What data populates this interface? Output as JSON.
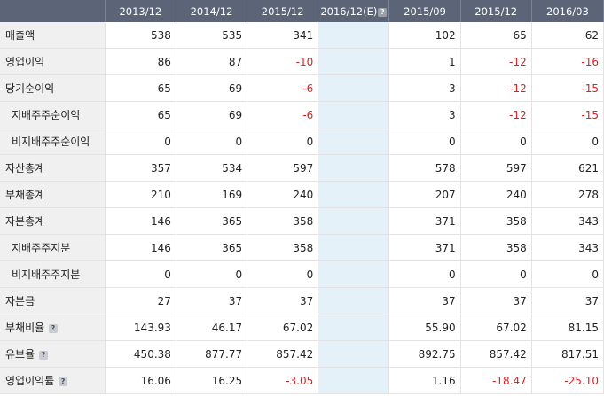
{
  "columns": [
    "2013/12",
    "2014/12",
    "2015/12",
    "2016/12(E)",
    "2015/09",
    "2015/12",
    "2016/03"
  ],
  "help_glyph": "?",
  "rows": [
    {
      "label": "매출액",
      "sub": false,
      "help": false,
      "values": [
        "538",
        "535",
        "341",
        "",
        "102",
        "65",
        "62"
      ]
    },
    {
      "label": "영업이익",
      "sub": false,
      "help": false,
      "values": [
        "86",
        "87",
        "-10",
        "",
        "1",
        "-12",
        "-16"
      ]
    },
    {
      "label": "당기순이익",
      "sub": false,
      "help": false,
      "values": [
        "65",
        "69",
        "-6",
        "",
        "3",
        "-12",
        "-15"
      ]
    },
    {
      "label": "지배주주순이익",
      "sub": true,
      "help": false,
      "values": [
        "65",
        "69",
        "-6",
        "",
        "3",
        "-12",
        "-15"
      ]
    },
    {
      "label": "비지배주주순이익",
      "sub": true,
      "help": false,
      "values": [
        "0",
        "0",
        "0",
        "",
        "0",
        "0",
        "0"
      ]
    },
    {
      "label": "자산총계",
      "sub": false,
      "help": false,
      "values": [
        "357",
        "534",
        "597",
        "",
        "578",
        "597",
        "621"
      ]
    },
    {
      "label": "부채총계",
      "sub": false,
      "help": false,
      "values": [
        "210",
        "169",
        "240",
        "",
        "207",
        "240",
        "278"
      ]
    },
    {
      "label": "자본총계",
      "sub": false,
      "help": false,
      "values": [
        "146",
        "365",
        "358",
        "",
        "371",
        "358",
        "343"
      ]
    },
    {
      "label": "지배주주지분",
      "sub": true,
      "help": false,
      "values": [
        "146",
        "365",
        "358",
        "",
        "371",
        "358",
        "343"
      ]
    },
    {
      "label": "비지배주주지분",
      "sub": true,
      "help": false,
      "values": [
        "0",
        "0",
        "0",
        "",
        "0",
        "0",
        "0"
      ]
    },
    {
      "label": "자본금",
      "sub": false,
      "help": false,
      "values": [
        "27",
        "37",
        "37",
        "",
        "37",
        "37",
        "37"
      ]
    },
    {
      "label": "부채비율",
      "sub": false,
      "help": true,
      "values": [
        "143.93",
        "46.17",
        "67.02",
        "",
        "55.90",
        "67.02",
        "81.15"
      ]
    },
    {
      "label": "유보율",
      "sub": false,
      "help": true,
      "values": [
        "450.38",
        "877.77",
        "857.42",
        "",
        "892.75",
        "857.42",
        "817.51"
      ]
    },
    {
      "label": "영업이익률",
      "sub": false,
      "help": true,
      "values": [
        "16.06",
        "16.25",
        "-3.05",
        "",
        "1.16",
        "-18.47",
        "-25.10"
      ]
    }
  ],
  "colors": {
    "header_bg": "#5c6577",
    "estimate_col_bg": "#e5f1f8",
    "negative": "#e02020",
    "label_bg": "#f0f0f0"
  }
}
